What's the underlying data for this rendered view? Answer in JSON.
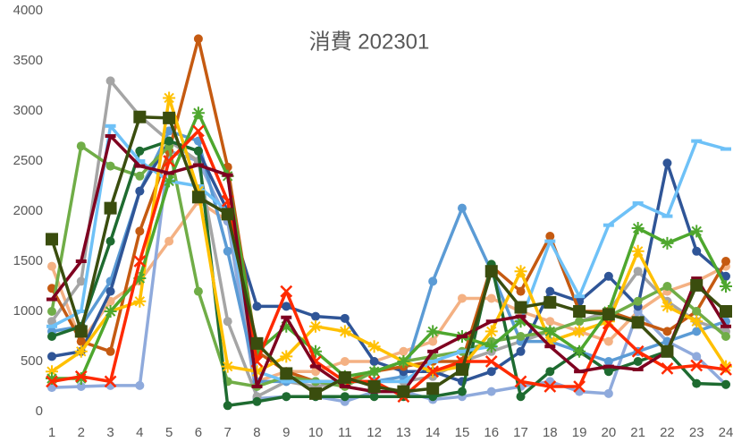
{
  "chart_data": {
    "type": "line",
    "title": "消費 202301",
    "categories": [
      1,
      2,
      3,
      4,
      5,
      6,
      7,
      8,
      9,
      10,
      11,
      12,
      13,
      14,
      15,
      16,
      17,
      18,
      19,
      20,
      21,
      22,
      23,
      24
    ],
    "ylim": [
      0,
      4000
    ],
    "yticks": [
      0,
      500,
      1000,
      1500,
      2000,
      2500,
      3000,
      3500,
      4000
    ],
    "series": [
      {
        "color": "#f4b183",
        "marker": "circle",
        "values": [
          1450,
          700,
          1100,
          1300,
          1700,
          2100,
          1900,
          300,
          400,
          400,
          500,
          500,
          600,
          700,
          1130,
          1130,
          1000,
          900,
          800,
          700,
          1000,
          1200,
          1300,
          1450
        ]
      },
      {
        "color": "#8faadc",
        "marker": "circle",
        "values": [
          240,
          250,
          260,
          260,
          2600,
          2500,
          1900,
          130,
          150,
          150,
          100,
          200,
          200,
          120,
          150,
          200,
          250,
          300,
          200,
          180,
          1000,
          700,
          550,
          270
        ]
      },
      {
        "color": "#a5a5a5",
        "marker": "circle",
        "values": [
          900,
          1300,
          3300,
          2950,
          2700,
          2500,
          900,
          150,
          300,
          250,
          300,
          300,
          300,
          350,
          500,
          600,
          700,
          800,
          900,
          1000,
          1400,
          1100,
          900,
          800
        ]
      },
      {
        "color": "#5b9bd5",
        "marker": "circle",
        "values": [
          800,
          850,
          1300,
          2200,
          2800,
          2700,
          1600,
          300,
          300,
          300,
          300,
          300,
          350,
          1300,
          2030,
          1400,
          700,
          700,
          600,
          500,
          600,
          700,
          800,
          900
        ]
      },
      {
        "color": "#2f5597",
        "marker": "circle",
        "values": [
          550,
          600,
          1200,
          2200,
          2700,
          2600,
          2000,
          1050,
          1050,
          950,
          930,
          500,
          400,
          400,
          300,
          400,
          600,
          1200,
          1100,
          1350,
          1050,
          2480,
          1600,
          1350
        ]
      },
      {
        "color": "#c55a11",
        "marker": "circle",
        "values": [
          1230,
          700,
          600,
          1800,
          2600,
          3720,
          2440,
          600,
          400,
          300,
          300,
          400,
          450,
          500,
          500,
          1450,
          1200,
          1750,
          1000,
          1000,
          900,
          800,
          1000,
          1500
        ]
      },
      {
        "color": "#70ad47",
        "marker": "circle",
        "values": [
          1000,
          2650,
          2450,
          2350,
          2650,
          1200,
          300,
          250,
          350,
          300,
          250,
          400,
          500,
          550,
          600,
          700,
          750,
          800,
          900,
          950,
          1100,
          1250,
          1000,
          750
        ]
      },
      {
        "color": "#1e6b30",
        "marker": "circle",
        "values": [
          750,
          850,
          1700,
          2600,
          2700,
          2600,
          60,
          100,
          150,
          150,
          150,
          150,
          150,
          150,
          200,
          1470,
          150,
          400,
          600,
          400,
          500,
          600,
          280,
          270
        ]
      },
      {
        "color": "#6ec1f7",
        "marker": "dash",
        "values": [
          850,
          1000,
          2850,
          2500,
          2300,
          2250,
          2000,
          400,
          300,
          300,
          300,
          300,
          300,
          500,
          600,
          650,
          900,
          1700,
          1150,
          1860,
          2080,
          1950,
          2700,
          2620
        ]
      },
      {
        "color": "#ffc000",
        "marker": "star",
        "values": [
          400,
          600,
          1000,
          1100,
          3130,
          2200,
          450,
          400,
          550,
          850,
          800,
          650,
          500,
          400,
          450,
          800,
          1400,
          700,
          800,
          900,
          1600,
          1050,
          900,
          450
        ]
      },
      {
        "color": "#4ea72e",
        "marker": "star",
        "values": [
          330,
          330,
          1000,
          1330,
          2300,
          2980,
          2350,
          600,
          850,
          600,
          350,
          400,
          500,
          800,
          750,
          650,
          900,
          800,
          600,
          1000,
          1830,
          1680,
          1800,
          1250
        ]
      },
      {
        "color": "#ff2a00",
        "marker": "x",
        "values": [
          300,
          350,
          300,
          1500,
          2500,
          2800,
          2100,
          500,
          1200,
          500,
          300,
          300,
          150,
          400,
          500,
          500,
          300,
          250,
          250,
          880,
          600,
          430,
          460,
          420
        ]
      },
      {
        "color": "#7f0020",
        "marker": "dash",
        "values": [
          1120,
          1500,
          2750,
          2450,
          2380,
          2460,
          2360,
          250,
          940,
          450,
          250,
          200,
          200,
          600,
          750,
          900,
          950,
          650,
          400,
          450,
          420,
          600,
          1330,
          850
        ]
      },
      {
        "color": "#3a4d0e",
        "marker": "square",
        "values": [
          1720,
          800,
          2030,
          2940,
          2930,
          2140,
          1970,
          680,
          380,
          180,
          340,
          250,
          200,
          230,
          420,
          1400,
          1040,
          1090,
          1000,
          970,
          890,
          600,
          1260,
          1000
        ]
      }
    ]
  }
}
